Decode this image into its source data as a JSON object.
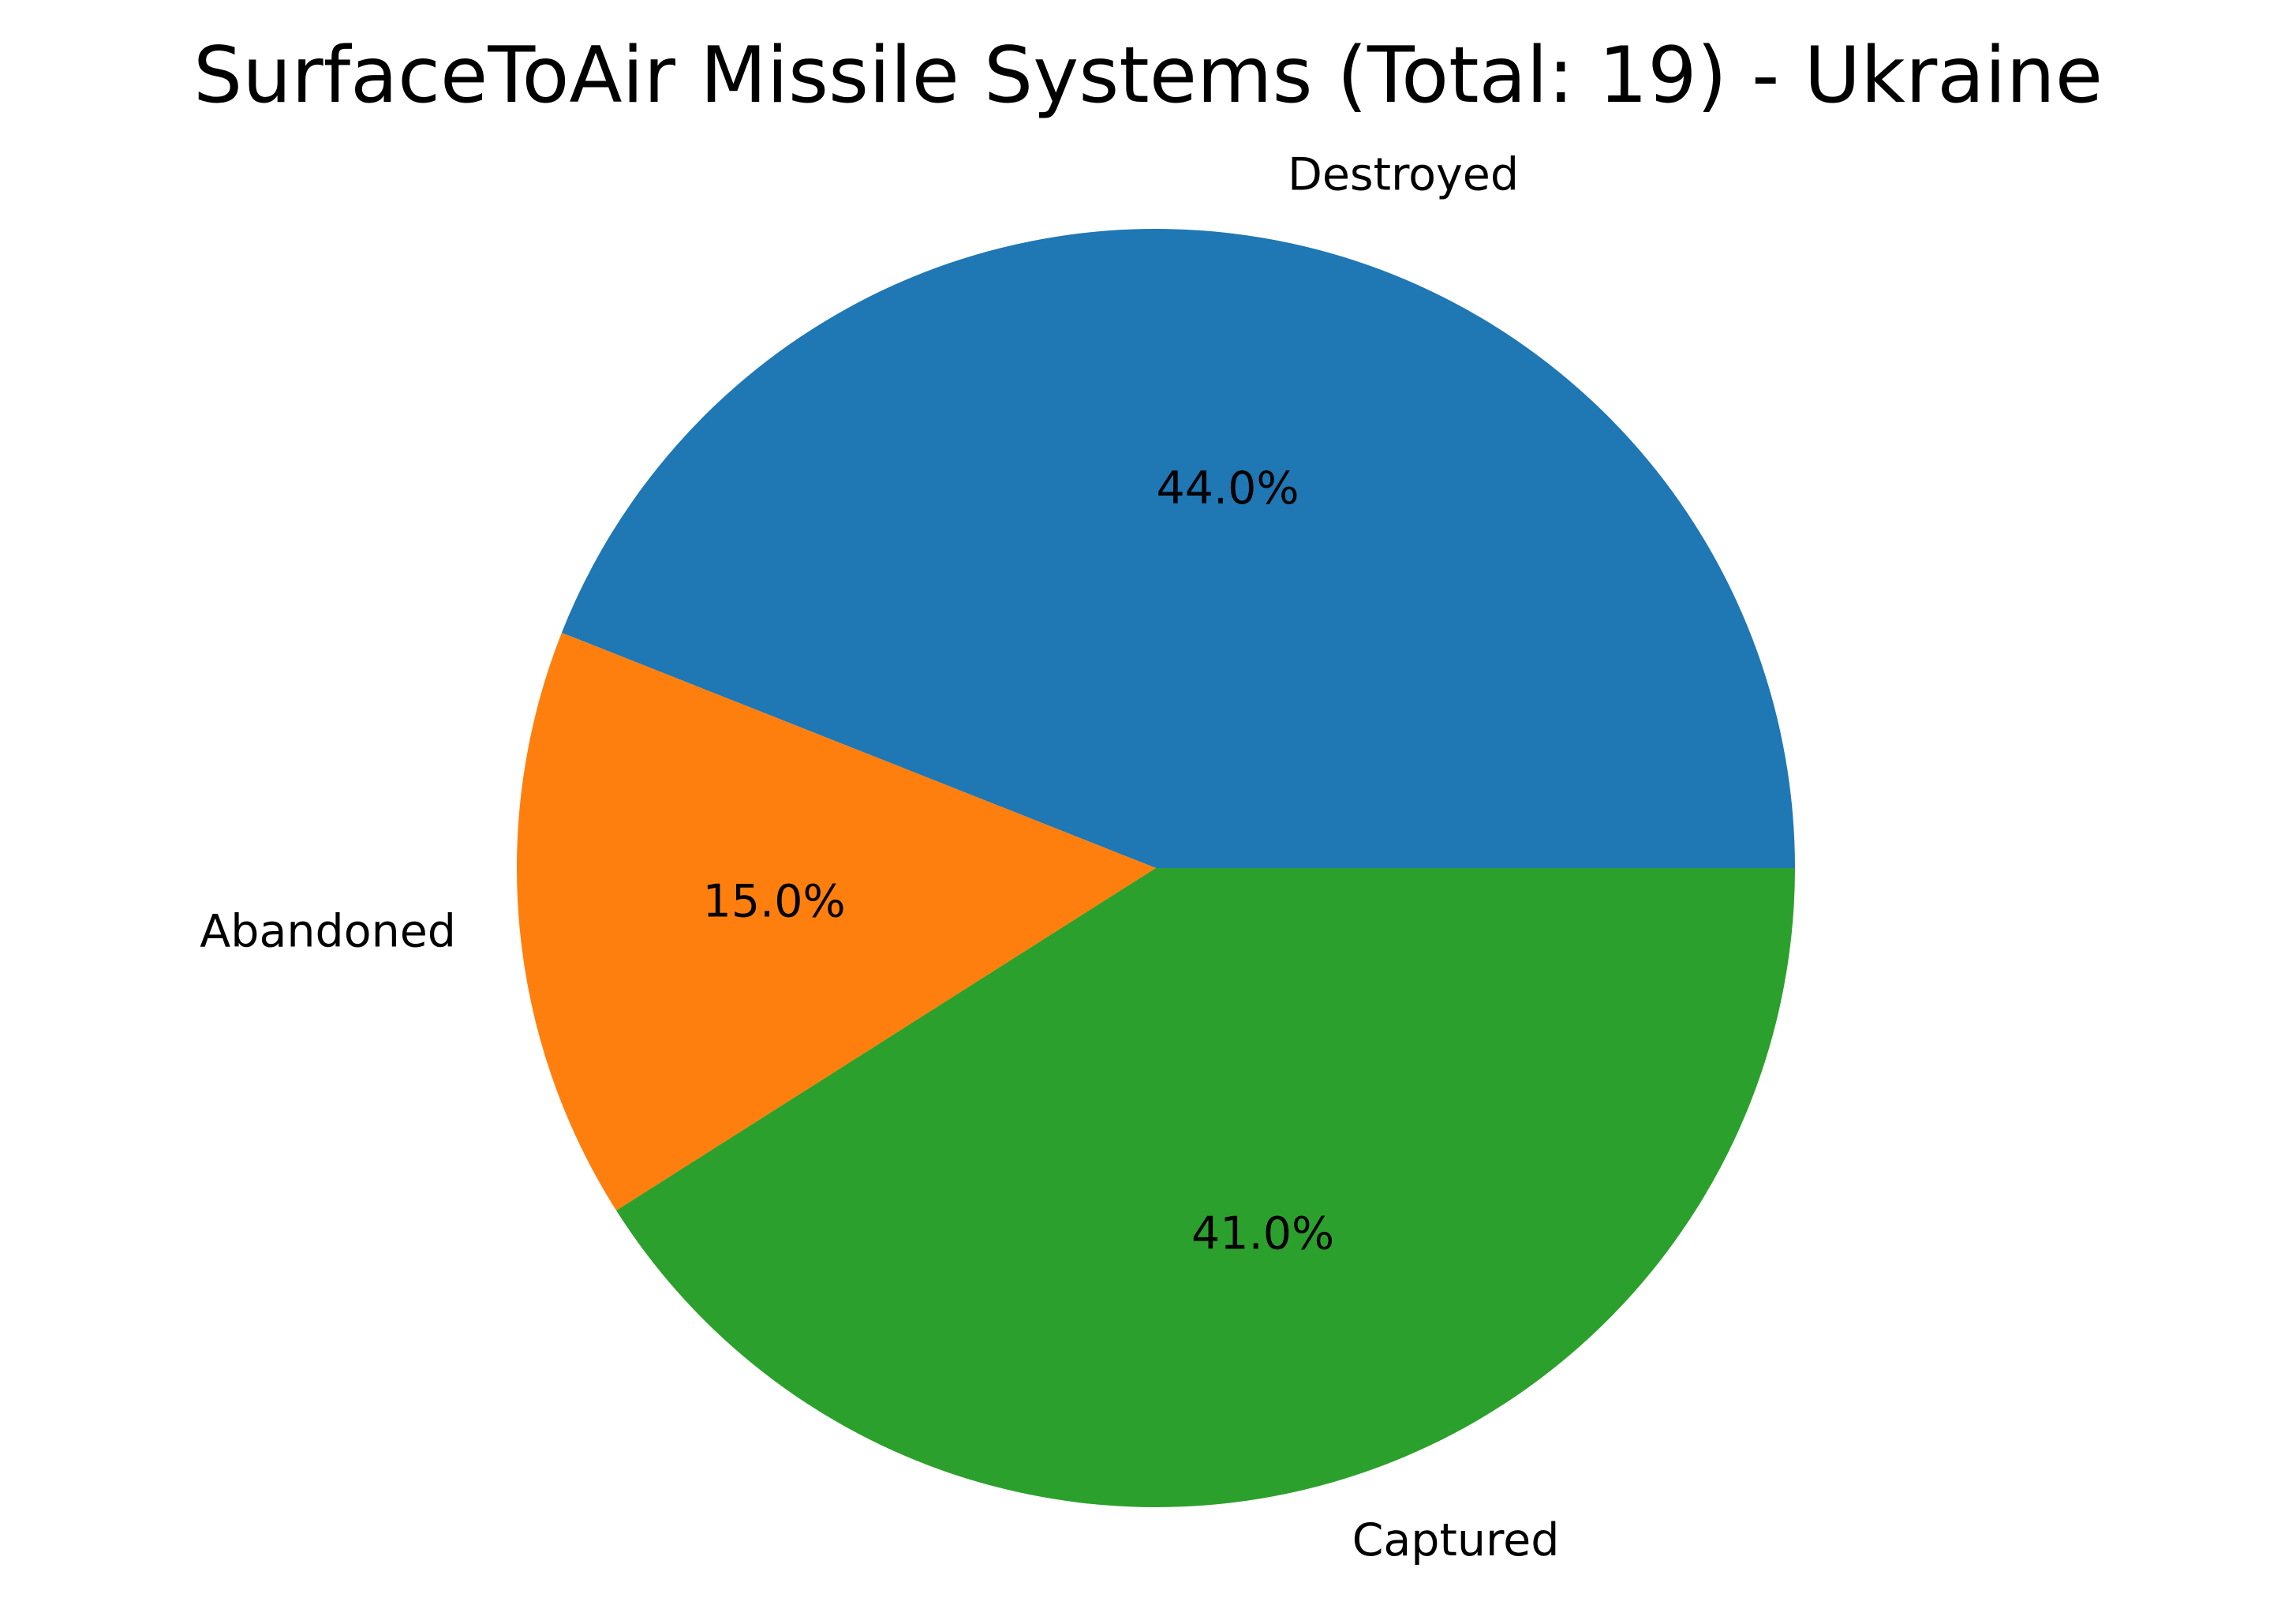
{
  "chart_data": {
    "type": "pie",
    "title": "SurfaceToAir Missile Systems (Total: 19) - Ukraine",
    "slices": [
      {
        "label": "Destroyed",
        "value": 44.0,
        "pct_label": "44.0%",
        "color": "#1f77b4"
      },
      {
        "label": "Abandoned",
        "value": 15.0,
        "pct_label": "15.0%",
        "color": "#ff7f0e"
      },
      {
        "label": "Captured",
        "value": 41.0,
        "pct_label": "41.0%",
        "color": "#2ca02c"
      }
    ],
    "start_angle_deg": 0,
    "direction": "counterclockwise",
    "legend": "none"
  }
}
